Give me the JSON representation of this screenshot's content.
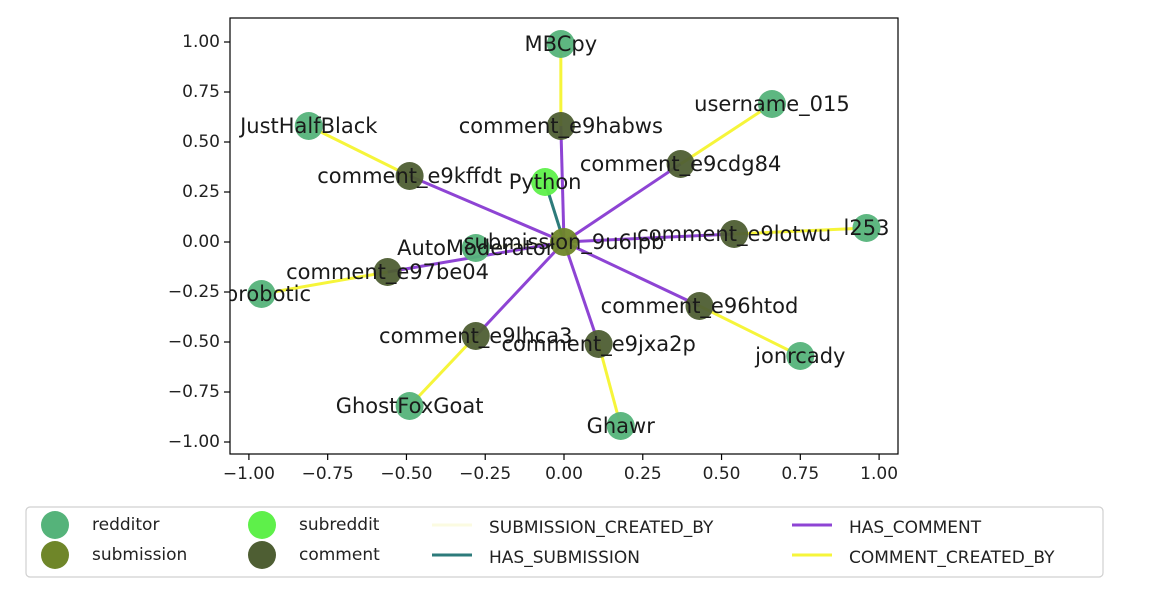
{
  "chart_data": {
    "type": "network",
    "xlim": [
      -1.06,
      1.06
    ],
    "ylim": [
      -1.06,
      1.12
    ],
    "x_ticks": [
      "−1.00",
      "−0.75",
      "−0.50",
      "−0.25",
      "0.00",
      "0.25",
      "0.50",
      "0.75",
      "1.00"
    ],
    "x_tick_values": [
      -1.0,
      -0.75,
      -0.5,
      -0.25,
      0.0,
      0.25,
      0.5,
      0.75,
      1.0
    ],
    "y_ticks": [
      "1.00",
      "0.75",
      "0.50",
      "0.25",
      "0.00",
      "−0.25",
      "−0.50",
      "−0.75",
      "−1.00"
    ],
    "y_tick_values": [
      1.0,
      0.75,
      0.5,
      0.25,
      0.0,
      -0.25,
      -0.5,
      -0.75,
      -1.0
    ],
    "grid": false,
    "legend_position": "below",
    "colors": {
      "redditor": "#55b37a",
      "submission": "#6f8629",
      "subreddit": "#5ef04a",
      "comment": "#4e5e33",
      "SUBMISSION_CREATED_BY": "#fbfbe1",
      "HAS_SUBMISSION": "#2d7b7b",
      "HAS_COMMENT": "#8e44d4",
      "COMMENT_CREATED_BY": "#f6f53a"
    },
    "nodes": [
      {
        "id": "submission_9u6lpb",
        "label": "submission_9u6lpb",
        "type": "submission",
        "x": 0.0,
        "y": 0.0
      },
      {
        "id": "Python",
        "label": "Python",
        "type": "subreddit",
        "x": -0.06,
        "y": 0.3
      },
      {
        "id": "AutoModerator",
        "label": "AutoModerator",
        "type": "redditor",
        "x": -0.28,
        "y": -0.03
      },
      {
        "id": "comment_e9habws",
        "label": "comment_e9habws",
        "type": "comment",
        "x": -0.01,
        "y": 0.58
      },
      {
        "id": "comment_e9cdg84",
        "label": "comment_e9cdg84",
        "type": "comment",
        "x": 0.37,
        "y": 0.39
      },
      {
        "id": "comment_e9lotwu",
        "label": "comment_e9lotwu",
        "type": "comment",
        "x": 0.54,
        "y": 0.04
      },
      {
        "id": "comment_e96htod",
        "label": "comment_e96htod",
        "type": "comment",
        "x": 0.43,
        "y": -0.32
      },
      {
        "id": "comment_e9jxa2p",
        "label": "comment_e9jxa2p",
        "type": "comment",
        "x": 0.11,
        "y": -0.51
      },
      {
        "id": "comment_e9lhca3",
        "label": "comment_e9lhca3",
        "type": "comment",
        "x": -0.28,
        "y": -0.47
      },
      {
        "id": "comment_e97be04",
        "label": "comment_e97be04",
        "type": "comment",
        "x": -0.56,
        "y": -0.15
      },
      {
        "id": "comment_e9kffdt",
        "label": "comment_e9kffdt",
        "type": "comment",
        "x": -0.49,
        "y": 0.33
      },
      {
        "id": "MBCpy",
        "label": "MBCpy",
        "type": "redditor",
        "x": -0.01,
        "y": 0.99
      },
      {
        "id": "username_015",
        "label": "username_015",
        "type": "redditor",
        "x": 0.66,
        "y": 0.69
      },
      {
        "id": "l253",
        "label": "l253",
        "type": "redditor",
        "x": 0.96,
        "y": 0.07
      },
      {
        "id": "jonrcady",
        "label": "jonrcady",
        "type": "redditor",
        "x": 0.75,
        "y": -0.57
      },
      {
        "id": "Ghawr",
        "label": "Ghawr",
        "type": "redditor",
        "x": 0.18,
        "y": -0.92
      },
      {
        "id": "GhostFoxGoat",
        "label": "GhostFoxGoat",
        "type": "redditor",
        "x": -0.49,
        "y": -0.82
      },
      {
        "id": "ebrobotic",
        "label": "ebrobotic",
        "type": "redditor",
        "x": -0.96,
        "y": -0.26
      },
      {
        "id": "JustHalfBlack",
        "label": "JustHalfBlack",
        "type": "redditor",
        "x": -0.81,
        "y": 0.58
      }
    ],
    "edges": [
      {
        "source": "submission_9u6lpb",
        "target": "AutoModerator",
        "type": "SUBMISSION_CREATED_BY"
      },
      {
        "source": "Python",
        "target": "submission_9u6lpb",
        "type": "HAS_SUBMISSION"
      },
      {
        "source": "submission_9u6lpb",
        "target": "comment_e9habws",
        "type": "HAS_COMMENT"
      },
      {
        "source": "submission_9u6lpb",
        "target": "comment_e9cdg84",
        "type": "HAS_COMMENT"
      },
      {
        "source": "submission_9u6lpb",
        "target": "comment_e9lotwu",
        "type": "HAS_COMMENT"
      },
      {
        "source": "submission_9u6lpb",
        "target": "comment_e96htod",
        "type": "HAS_COMMENT"
      },
      {
        "source": "submission_9u6lpb",
        "target": "comment_e9jxa2p",
        "type": "HAS_COMMENT"
      },
      {
        "source": "submission_9u6lpb",
        "target": "comment_e9lhca3",
        "type": "HAS_COMMENT"
      },
      {
        "source": "submission_9u6lpb",
        "target": "comment_e97be04",
        "type": "HAS_COMMENT"
      },
      {
        "source": "submission_9u6lpb",
        "target": "comment_e9kffdt",
        "type": "HAS_COMMENT"
      },
      {
        "source": "comment_e9habws",
        "target": "MBCpy",
        "type": "COMMENT_CREATED_BY"
      },
      {
        "source": "comment_e9cdg84",
        "target": "username_015",
        "type": "COMMENT_CREATED_BY"
      },
      {
        "source": "comment_e9lotwu",
        "target": "l253",
        "type": "COMMENT_CREATED_BY"
      },
      {
        "source": "comment_e96htod",
        "target": "jonrcady",
        "type": "COMMENT_CREATED_BY"
      },
      {
        "source": "comment_e9jxa2p",
        "target": "Ghawr",
        "type": "COMMENT_CREATED_BY"
      },
      {
        "source": "comment_e9lhca3",
        "target": "GhostFoxGoat",
        "type": "COMMENT_CREATED_BY"
      },
      {
        "source": "comment_e97be04",
        "target": "ebrobotic",
        "type": "COMMENT_CREATED_BY"
      },
      {
        "source": "comment_e9kffdt",
        "target": "JustHalfBlack",
        "type": "COMMENT_CREATED_BY"
      }
    ],
    "legend": {
      "node_entries": [
        {
          "label": "redditor",
          "type": "redditor"
        },
        {
          "label": "submission",
          "type": "submission"
        },
        {
          "label": "subreddit",
          "type": "subreddit"
        },
        {
          "label": "comment",
          "type": "comment"
        }
      ],
      "edge_entries": [
        {
          "label": "SUBMISSION_CREATED_BY",
          "type": "SUBMISSION_CREATED_BY"
        },
        {
          "label": "HAS_SUBMISSION",
          "type": "HAS_SUBMISSION"
        },
        {
          "label": "HAS_COMMENT",
          "type": "HAS_COMMENT"
        },
        {
          "label": "COMMENT_CREATED_BY",
          "type": "COMMENT_CREATED_BY"
        }
      ]
    }
  }
}
